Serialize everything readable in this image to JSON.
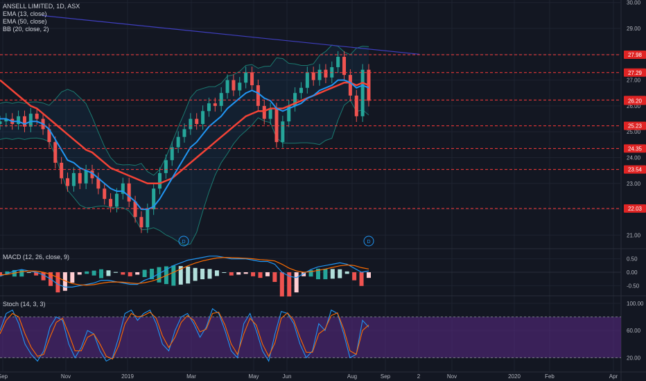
{
  "header": {
    "symbol_line": "ANSELL LIMITED, 1D, ASX",
    "indicators": [
      "EMA (13, close)",
      "EMA (50, close)",
      "BB (20, close, 2)"
    ]
  },
  "macd_label": "MACD (12, 26, close, 9)",
  "stoch_label": "Stoch (14, 3, 3)",
  "colors": {
    "background": "#131722",
    "grid": "#1e2330",
    "bull": "#26a69a",
    "bear": "#ef5350",
    "ema13": "#2196f3",
    "ema50": "#f44336",
    "bb": "#1b7a70",
    "trendline": "#3f3fbf",
    "level": "#ff3b3b",
    "stoch_band": "#5b2a86"
  },
  "x_axis": {
    "labels": [
      "Sep",
      "Nov",
      "2019",
      "Mar",
      "May",
      "Jun",
      "Aug",
      "Sep",
      "2",
      "Nov",
      "2020",
      "Feb",
      "Apr"
    ]
  },
  "chart_data": [
    {
      "type": "line",
      "title": "ANSELL LIMITED, 1D, ASX",
      "y_axis_ticks": [
        "30.00",
        "29.00",
        "28.00",
        "27.00",
        "26.00",
        "25.00",
        "24.00",
        "23.00",
        "22.00",
        "21.00"
      ],
      "ylim": [
        20.5,
        30.1
      ],
      "horizontal_levels": [
        "27.98",
        "27.29",
        "26.23",
        "25.23",
        "24.35",
        "23.54",
        "22.03"
      ],
      "price_label": "26.20",
      "dividend_markers": [
        "D",
        "D"
      ],
      "series": [
        {
          "name": "Close",
          "values": [
            25.4,
            25.5,
            25.3,
            25.6,
            25.2,
            25.7,
            25.5,
            25.1,
            24.6,
            23.8,
            23.2,
            22.9,
            23.4,
            23.0,
            23.5,
            23.2,
            22.8,
            22.4,
            22.1,
            22.6,
            23.0,
            22.3,
            21.7,
            21.3,
            22.0,
            22.8,
            23.4,
            23.9,
            24.4,
            24.8,
            25.1,
            25.5,
            25.3,
            25.8,
            26.1,
            26.0,
            26.5,
            27.0,
            26.6,
            26.9,
            27.3,
            26.8,
            26.0,
            25.5,
            25.9,
            24.6,
            25.4,
            26.0,
            26.5,
            26.7,
            27.3,
            27.0,
            27.4,
            27.1,
            27.5,
            27.9,
            27.2,
            26.4,
            25.6,
            27.4,
            26.2
          ]
        },
        {
          "name": "EMA (13, close)",
          "values": [
            25.5,
            25.5,
            25.4,
            25.4,
            25.3,
            25.4,
            25.4,
            25.3,
            25.1,
            24.7,
            24.3,
            23.9,
            23.8,
            23.6,
            23.5,
            23.4,
            23.2,
            23.0,
            22.8,
            22.7,
            22.7,
            22.5,
            22.3,
            22.0,
            22.0,
            22.1,
            22.4,
            22.8,
            23.2,
            23.6,
            24.0,
            24.4,
            24.6,
            24.9,
            25.2,
            25.4,
            25.6,
            25.9,
            26.1,
            26.3,
            26.5,
            26.6,
            26.5,
            26.3,
            26.2,
            25.9,
            25.8,
            25.9,
            26.0,
            26.1,
            26.3,
            26.4,
            26.6,
            26.7,
            26.8,
            27.0,
            27.0,
            26.9,
            26.7,
            26.8,
            26.7
          ]
        },
        {
          "name": "EMA (50, close)",
          "values": [
            27.0,
            26.8,
            26.6,
            26.4,
            26.2,
            26.0,
            25.9,
            25.7,
            25.5,
            25.3,
            25.1,
            24.9,
            24.7,
            24.5,
            24.3,
            24.2,
            24.0,
            23.8,
            23.6,
            23.5,
            23.4,
            23.3,
            23.2,
            23.1,
            23.0,
            23.0,
            23.0,
            23.1,
            23.2,
            23.4,
            23.6,
            23.8,
            24.0,
            24.2,
            24.4,
            24.6,
            24.8,
            25.0,
            25.2,
            25.4,
            25.6,
            25.7,
            25.8,
            25.8,
            25.9,
            25.9,
            25.9,
            26.0,
            26.1,
            26.2,
            26.3,
            26.4,
            26.5,
            26.6,
            26.7,
            26.8,
            26.9,
            26.9,
            26.8,
            26.9,
            26.8
          ]
        }
      ]
    },
    {
      "type": "bar",
      "title": "MACD (12, 26, close, 9)",
      "y_axis_ticks": [
        "0.50",
        "0.00",
        "-0.50"
      ],
      "ylim": [
        -0.85,
        0.85
      ],
      "series": [
        {
          "name": "MACD",
          "values": [
            -0.15,
            -0.05,
            0.05,
            0.1,
            0.05,
            0.0,
            -0.1,
            -0.25,
            -0.45,
            -0.55,
            -0.55,
            -0.5,
            -0.45,
            -0.4,
            -0.3,
            -0.3,
            -0.35,
            -0.4,
            -0.45,
            -0.45,
            -0.3,
            -0.2,
            -0.05,
            0.1,
            0.25,
            0.35,
            0.45,
            0.5,
            0.55,
            0.6,
            0.6,
            0.55,
            0.5,
            0.5,
            0.5,
            0.45,
            0.4,
            0.4,
            0.3,
            0.0,
            -0.15,
            -0.2,
            -0.05,
            0.1,
            0.2,
            0.25,
            0.3,
            0.35,
            0.3,
            0.15,
            0.0,
            0.05
          ]
        },
        {
          "name": "Signal",
          "values": [
            -0.1,
            -0.08,
            -0.03,
            0.02,
            0.05,
            0.04,
            0.0,
            -0.08,
            -0.2,
            -0.32,
            -0.42,
            -0.47,
            -0.48,
            -0.46,
            -0.41,
            -0.37,
            -0.36,
            -0.37,
            -0.4,
            -0.42,
            -0.39,
            -0.33,
            -0.24,
            -0.12,
            0.0,
            0.12,
            0.24,
            0.34,
            0.42,
            0.48,
            0.53,
            0.55,
            0.54,
            0.53,
            0.52,
            0.5,
            0.47,
            0.45,
            0.42,
            0.3,
            0.15,
            0.05,
            0.0,
            0.02,
            0.07,
            0.12,
            0.18,
            0.24,
            0.27,
            0.25,
            0.17,
            0.12
          ]
        }
      ]
    },
    {
      "type": "line",
      "title": "Stoch (14, 3, 3)",
      "y_axis_ticks": [
        "100.00",
        "60.00",
        "20.00"
      ],
      "ylim": [
        0,
        110
      ],
      "band": [
        20,
        80
      ],
      "series": [
        {
          "name": "%K",
          "values": [
            60,
            85,
            90,
            70,
            40,
            25,
            15,
            30,
            65,
            80,
            75,
            40,
            20,
            35,
            60,
            55,
            30,
            15,
            20,
            50,
            85,
            90,
            75,
            85,
            90,
            70,
            40,
            30,
            60,
            80,
            85,
            70,
            50,
            65,
            92,
            85,
            60,
            30,
            20,
            70,
            85,
            60,
            30,
            15,
            55,
            88,
            85,
            70,
            40,
            20,
            30,
            70,
            60,
            90,
            85,
            55,
            20,
            25,
            75,
            65
          ]
        },
        {
          "name": "%D",
          "values": [
            55,
            75,
            85,
            80,
            55,
            35,
            22,
            25,
            50,
            72,
            78,
            55,
            30,
            30,
            50,
            55,
            40,
            22,
            18,
            38,
            70,
            85,
            80,
            82,
            87,
            78,
            52,
            35,
            50,
            72,
            82,
            75,
            58,
            62,
            85,
            87,
            68,
            40,
            25,
            55,
            78,
            68,
            40,
            22,
            42,
            78,
            86,
            75,
            50,
            28,
            28,
            55,
            62,
            82,
            86,
            62,
            30,
            25,
            60,
            68
          ]
        }
      ]
    }
  ]
}
